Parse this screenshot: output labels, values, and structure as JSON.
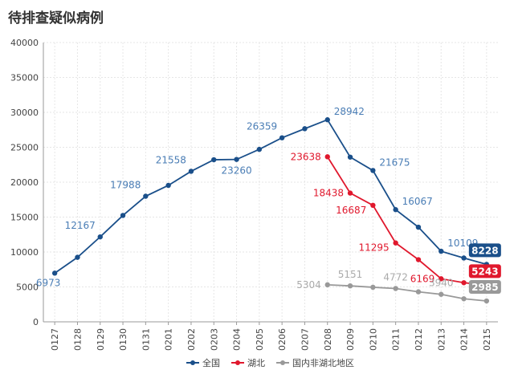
{
  "chart_data": {
    "type": "line",
    "title": "待排查疑似病例",
    "categories": [
      "0127",
      "0128",
      "0129",
      "0130",
      "0131",
      "0201",
      "0202",
      "0203",
      "0204",
      "0205",
      "0206",
      "0207",
      "0208",
      "0209",
      "0210",
      "0211",
      "0212",
      "0213",
      "0214",
      "0215"
    ],
    "series": [
      {
        "name": "全国",
        "color": "#1a4f8a",
        "label_color": "#4a7db5",
        "values": [
          6973,
          9239,
          12167,
          15238,
          17988,
          19544,
          21558,
          23214,
          23260,
          24702,
          26359,
          27657,
          28942,
          23589,
          21675,
          16067,
          13556,
          10109,
          9141,
          8228
        ],
        "value_labels": [
          "6973",
          null,
          "12167",
          null,
          "17988",
          null,
          "21558",
          null,
          "23260",
          null,
          "26359",
          null,
          "28942",
          null,
          "21675",
          "16067",
          null,
          "10109",
          null,
          "8228"
        ]
      },
      {
        "name": "湖北",
        "color": "#e0182d",
        "label_color": "#e0182d",
        "values": [
          null,
          null,
          null,
          null,
          null,
          null,
          null,
          null,
          null,
          null,
          null,
          null,
          23638,
          18438,
          16687,
          11295,
          8906,
          6169,
          5600,
          5243
        ],
        "value_labels": [
          null,
          null,
          null,
          null,
          null,
          null,
          null,
          null,
          null,
          null,
          null,
          null,
          "23638",
          "18438",
          "16687",
          "11295",
          null,
          "6169",
          null,
          "5243"
        ]
      },
      {
        "name": "国内非湖北地区",
        "color": "#999999",
        "label_color": "#aaaaaa",
        "values": [
          null,
          null,
          null,
          null,
          null,
          null,
          null,
          null,
          null,
          null,
          null,
          null,
          5304,
          5151,
          4950,
          4772,
          4300,
          3940,
          3300,
          2985
        ],
        "value_labels": [
          null,
          null,
          null,
          null,
          null,
          null,
          null,
          null,
          null,
          null,
          null,
          null,
          "5304",
          "5151",
          null,
          "4772",
          null,
          "3940",
          null,
          "2985"
        ]
      }
    ],
    "ylim": [
      0,
      40000
    ],
    "yticks": [
      0,
      5000,
      10000,
      15000,
      20000,
      25000,
      30000,
      35000,
      40000
    ],
    "grid": true,
    "legend": "bottom"
  }
}
